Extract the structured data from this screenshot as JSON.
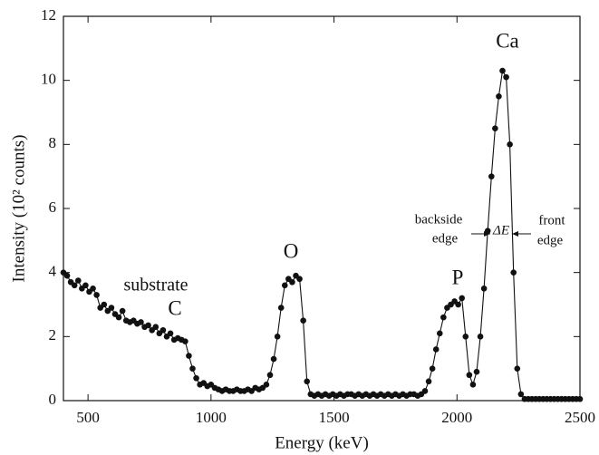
{
  "chart_data": {
    "type": "line",
    "marker": true,
    "color": "#111111",
    "x_label": "Energy (keV)",
    "y_label": "Intensity (10² counts)",
    "xlim": [
      400,
      2500
    ],
    "xticks": [
      500,
      1000,
      1500,
      2000,
      2500
    ],
    "ylim": [
      0,
      12
    ],
    "yticks": [
      0,
      2,
      4,
      6,
      8,
      10,
      12
    ],
    "annotations": [
      "substrate",
      "C",
      "O",
      "P",
      "Ca",
      "backside",
      "edge",
      "ΔE",
      "front",
      "edge"
    ],
    "x": [
      400,
      415,
      430,
      445,
      460,
      475,
      490,
      505,
      520,
      535,
      550,
      565,
      580,
      595,
      610,
      625,
      640,
      655,
      670,
      685,
      700,
      715,
      730,
      745,
      760,
      775,
      790,
      805,
      820,
      835,
      850,
      865,
      880,
      895,
      910,
      925,
      940,
      955,
      970,
      985,
      1000,
      1015,
      1030,
      1045,
      1060,
      1075,
      1090,
      1105,
      1120,
      1135,
      1150,
      1165,
      1180,
      1195,
      1210,
      1225,
      1240,
      1255,
      1270,
      1285,
      1300,
      1315,
      1330,
      1345,
      1360,
      1375,
      1390,
      1405,
      1420,
      1435,
      1450,
      1465,
      1480,
      1495,
      1510,
      1525,
      1540,
      1555,
      1570,
      1585,
      1600,
      1615,
      1630,
      1645,
      1660,
      1675,
      1690,
      1705,
      1720,
      1735,
      1750,
      1765,
      1780,
      1795,
      1810,
      1825,
      1840,
      1855,
      1870,
      1885,
      1900,
      1915,
      1930,
      1945,
      1960,
      1975,
      1990,
      2005,
      2020,
      2035,
      2050,
      2065,
      2080,
      2095,
      2110,
      2125,
      2140,
      2155,
      2170,
      2185,
      2200,
      2215,
      2230,
      2245,
      2260,
      2275,
      2290,
      2305,
      2320,
      2335,
      2350,
      2365,
      2380,
      2395,
      2410,
      2425,
      2440,
      2455,
      2470,
      2485,
      2500
    ],
    "values": [
      4.0,
      3.9,
      3.7,
      3.6,
      3.75,
      3.5,
      3.6,
      3.4,
      3.5,
      3.3,
      2.9,
      3.0,
      2.8,
      2.9,
      2.7,
      2.6,
      2.8,
      2.5,
      2.45,
      2.5,
      2.4,
      2.45,
      2.3,
      2.35,
      2.2,
      2.3,
      2.1,
      2.2,
      2.0,
      2.1,
      1.9,
      1.95,
      1.9,
      1.85,
      1.4,
      1.0,
      0.7,
      0.5,
      0.55,
      0.45,
      0.5,
      0.4,
      0.35,
      0.3,
      0.35,
      0.3,
      0.3,
      0.35,
      0.3,
      0.3,
      0.35,
      0.3,
      0.4,
      0.35,
      0.4,
      0.5,
      0.8,
      1.3,
      2.0,
      2.9,
      3.6,
      3.8,
      3.7,
      3.9,
      3.8,
      2.5,
      0.6,
      0.2,
      0.15,
      0.2,
      0.15,
      0.2,
      0.15,
      0.2,
      0.15,
      0.2,
      0.15,
      0.2,
      0.2,
      0.15,
      0.2,
      0.15,
      0.2,
      0.15,
      0.2,
      0.15,
      0.2,
      0.15,
      0.2,
      0.15,
      0.2,
      0.15,
      0.2,
      0.15,
      0.2,
      0.2,
      0.15,
      0.2,
      0.3,
      0.6,
      1.0,
      1.6,
      2.1,
      2.6,
      2.9,
      3.0,
      3.1,
      3.0,
      3.2,
      2.0,
      0.8,
      0.5,
      0.9,
      2.0,
      3.5,
      5.3,
      7.0,
      8.5,
      9.5,
      10.3,
      10.1,
      8.0,
      4.0,
      1.0,
      0.2,
      0.05,
      0.05,
      0.05,
      0.05,
      0.05,
      0.05,
      0.05,
      0.05,
      0.05,
      0.05,
      0.05,
      0.05,
      0.05,
      0.05,
      0.05,
      0.05
    ]
  }
}
